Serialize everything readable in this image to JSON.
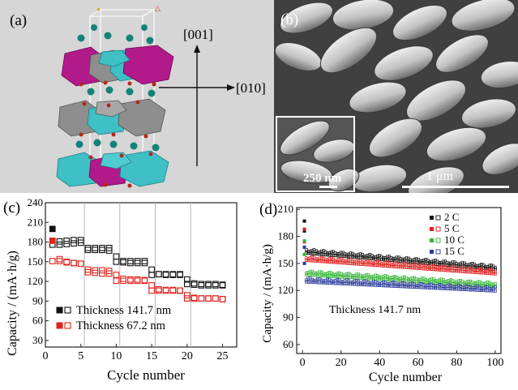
{
  "figure": {
    "panel_a": {
      "label": "(a)",
      "axis_up": "[001]",
      "axis_right": "[010]",
      "colors": {
        "magenta": "#b2198a",
        "gray": "#8e8e8e",
        "cyan": "#3fbfc6",
        "atom": "#148277",
        "oxygen": "#b6261c",
        "bg": "#d6d6d6"
      }
    },
    "panel_b": {
      "label": "(b)",
      "inset_scale": "250 nm",
      "main_scale": "1 μm"
    }
  },
  "chart_data": [
    {
      "type": "scatter",
      "panel": "(c)",
      "xlabel": "Cycle number",
      "ylabel": "Capacity / (mA·h/g)",
      "xlim": [
        0,
        27
      ],
      "ylim": [
        20,
        240
      ],
      "xticks": [
        0,
        5,
        10,
        15,
        20,
        25
      ],
      "yticks": [
        30,
        60,
        90,
        120,
        150,
        180,
        210,
        240
      ],
      "dividers": [
        5.5,
        10.5,
        15.5,
        20.5
      ],
      "legend_position": "bottom-left",
      "series": [
        {
          "name": "Thickness  141.7 nm",
          "color": "#111111",
          "charge": [
            200,
            181,
            182,
            183,
            183,
            168,
            168,
            168,
            167,
            158,
            149,
            148,
            148,
            148,
            138,
            131,
            130,
            130,
            130,
            123,
            117,
            116,
            116,
            116,
            115
          ],
          "discharge": [
            176,
            176,
            177,
            178,
            179,
            171,
            171,
            171,
            171,
            150,
            151,
            151,
            151,
            151,
            130,
            131,
            131,
            131,
            131,
            116,
            115,
            114,
            114,
            114,
            114
          ]
        },
        {
          "name": "Thickness  67.2 nm",
          "color": "#e0201b",
          "charge": [
            182,
            154,
            150,
            148,
            147,
            134,
            133,
            132,
            132,
            130,
            124,
            123,
            123,
            122,
            114,
            108,
            107,
            107,
            106,
            99,
            95,
            94,
            94,
            94,
            93
          ],
          "discharge": [
            151,
            151,
            149,
            148,
            147,
            138,
            137,
            137,
            136,
            121,
            121,
            121,
            121,
            121,
            106,
            106,
            106,
            106,
            106,
            94,
            94,
            94,
            94,
            94,
            93
          ]
        }
      ]
    },
    {
      "type": "scatter",
      "panel": "(d)",
      "xlabel": "Cycle number",
      "ylabel": "Capacity / (mA·h/g)",
      "xlim": [
        -3,
        103
      ],
      "ylim": [
        50,
        212
      ],
      "xticks": [
        0,
        20,
        40,
        60,
        80,
        100
      ],
      "yticks": [
        60,
        90,
        120,
        150,
        180,
        210
      ],
      "annotation": "Thickness  141.7 nm",
      "legend_position": "top-right",
      "series": [
        {
          "name": "2 C",
          "color": "#111111",
          "first": [
            197,
            186
          ],
          "start": 163,
          "end": 145
        },
        {
          "name": "5 C",
          "color": "#e0201b",
          "first": [
            188,
            174
          ],
          "start": 155,
          "end": 140
        },
        {
          "name": "10 C",
          "color": "#33b533",
          "first": [
            175,
            160
          ],
          "start": 139,
          "end": 126
        },
        {
          "name": "15 C",
          "color": "#2b3a9a",
          "first": [
            168,
            150
          ],
          "start": 131,
          "end": 121
        }
      ]
    }
  ]
}
